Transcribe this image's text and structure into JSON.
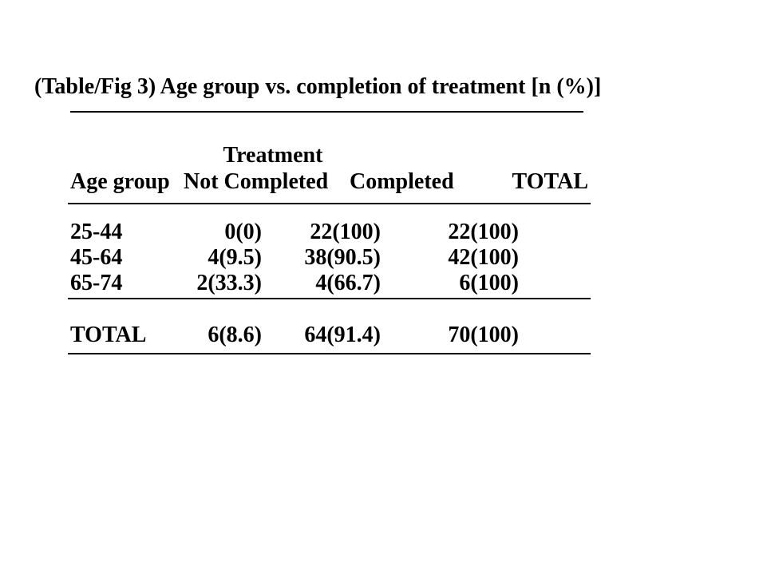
{
  "figure": {
    "title": "(Table/Fig 3) Age group vs. completion of treatment [n (%)]",
    "table": {
      "group_header": "Treatment",
      "columns": [
        "Age group",
        "Not Completed",
        "Completed",
        "TOTAL"
      ],
      "rows": [
        {
          "age_group": "25-44",
          "not_completed": "0(0)",
          "completed": "22(100)",
          "total": "22(100)"
        },
        {
          "age_group": "45-64",
          "not_completed": "4(9.5)",
          "completed": "38(90.5)",
          "total": "42(100)"
        },
        {
          "age_group": "65-74",
          "not_completed": "2(33.3)",
          "completed": "4(66.7)",
          "total": "6(100)"
        }
      ],
      "total_row": {
        "age_group": "TOTAL",
        "not_completed": "6(8.6)",
        "completed": "64(91.4)",
        "total": "70(100)"
      }
    }
  },
  "chart_data": {
    "type": "table",
    "title": "(Table/Fig 3) Age group vs. completion of treatment [n (%)]",
    "column_group": {
      "label": "Treatment",
      "spans": [
        "Not Completed",
        "Completed"
      ]
    },
    "columns": [
      "Age group",
      "Not Completed",
      "Completed",
      "TOTAL"
    ],
    "rows": [
      [
        "25-44",
        "0(0)",
        "22(100)",
        "22(100)"
      ],
      [
        "45-64",
        "4(9.5)",
        "38(90.5)",
        "42(100)"
      ],
      [
        "65-74",
        "2(33.3)",
        "4(66.7)",
        "6(100)"
      ],
      [
        "TOTAL",
        "6(8.6)",
        "64(91.4)",
        "70(100)"
      ]
    ],
    "counts": {
      "age_groups": [
        "25-44",
        "45-64",
        "65-74",
        "TOTAL"
      ],
      "not_completed_n": [
        0,
        4,
        2,
        6
      ],
      "not_completed_pct": [
        0,
        9.5,
        33.3,
        8.6
      ],
      "completed_n": [
        22,
        38,
        4,
        64
      ],
      "completed_pct": [
        100,
        90.5,
        66.7,
        91.4
      ],
      "total_n": [
        22,
        42,
        6,
        70
      ],
      "total_pct": [
        100,
        100,
        100,
        100
      ]
    },
    "colors": {
      "text": "#000000",
      "background": "#ffffff",
      "rule": "#000000"
    },
    "layout": {
      "font": "bold serif",
      "numeric_alignment": "right",
      "header_alignment": "left"
    }
  }
}
